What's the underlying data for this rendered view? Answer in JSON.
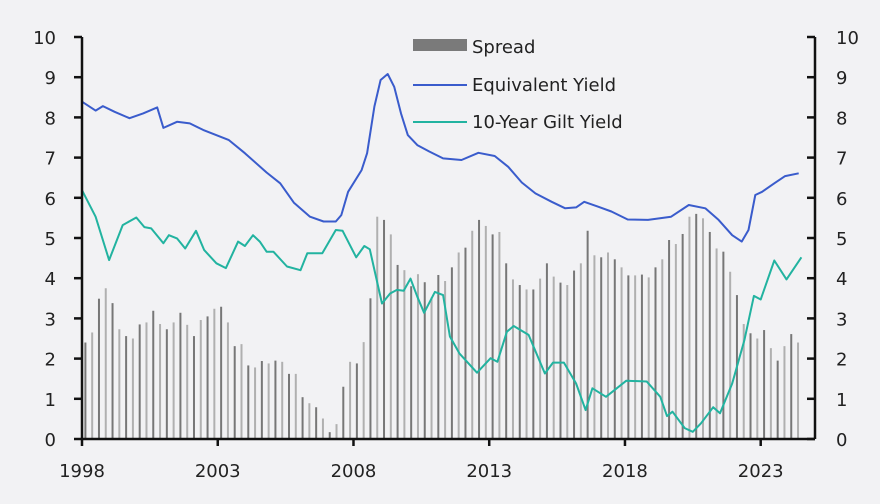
{
  "chart_data": {
    "type": "bar+line",
    "title": "",
    "xlabel": "",
    "ylabel": "",
    "xlim": [
      1998,
      2025
    ],
    "ylim": [
      0,
      10
    ],
    "ylim_right": [
      0,
      10
    ],
    "x_ticks": [
      "1998",
      "2003",
      "2008",
      "2013",
      "2018",
      "2023"
    ],
    "y_ticks": [
      "0",
      "1",
      "2",
      "3",
      "4",
      "5",
      "6",
      "7",
      "8",
      "9",
      "10"
    ],
    "grid": false,
    "legend_position": "top-center",
    "colors": {
      "spread": "#8a8a8a",
      "equivalent_yield": "#3a5ccc",
      "gilt_yield": "#22b3a0",
      "axis": "#111111",
      "background": "#f2f2f4"
    },
    "bars": {
      "name": "Spread",
      "start": 1998.0,
      "frequency": "quarterly",
      "values": [
        2.4,
        2.65,
        3.49,
        3.75,
        3.38,
        2.73,
        2.56,
        2.5,
        2.85,
        2.9,
        3.19,
        2.86,
        2.73,
        2.9,
        3.14,
        2.84,
        2.56,
        2.96,
        3.05,
        3.24,
        3.29,
        2.9,
        2.31,
        2.36,
        1.83,
        1.78,
        1.94,
        1.88,
        1.95,
        1.92,
        1.62,
        1.62,
        1.04,
        0.89,
        0.79,
        0.51,
        0.17,
        0.37,
        1.3,
        1.92,
        1.88,
        2.41,
        3.5,
        5.53,
        5.45,
        5.09,
        4.33,
        4.2,
        3.8,
        4.1,
        3.9,
        3.52,
        4.08,
        3.93,
        4.27,
        4.64,
        4.76,
        5.18,
        5.45,
        5.3,
        5.09,
        5.15,
        4.37,
        3.97,
        3.83,
        3.72,
        3.72,
        3.99,
        4.37,
        4.04,
        3.89,
        3.83,
        4.19,
        4.37,
        5.18,
        4.57,
        4.52,
        4.64,
        4.47,
        4.27,
        4.07,
        4.07,
        4.09,
        4.02,
        4.27,
        4.47,
        4.95,
        4.85,
        5.1,
        5.53,
        5.6,
        5.49,
        5.15,
        4.74,
        4.66,
        4.16,
        3.58,
        2.86,
        2.63,
        2.5,
        2.71,
        2.26,
        1.95,
        2.31,
        2.61,
        2.4
      ]
    },
    "series": [
      {
        "name": "Equivalent Yield",
        "points": [
          [
            1998.0,
            8.39
          ],
          [
            1998.5,
            8.17
          ],
          [
            1998.77,
            8.28
          ],
          [
            1999.2,
            8.14
          ],
          [
            1999.75,
            7.98
          ],
          [
            2000.25,
            8.1
          ],
          [
            2000.77,
            8.25
          ],
          [
            2001.0,
            7.74
          ],
          [
            2001.5,
            7.89
          ],
          [
            2001.97,
            7.85
          ],
          [
            2002.46,
            7.69
          ],
          [
            2003.4,
            7.44
          ],
          [
            2004.0,
            7.11
          ],
          [
            2004.8,
            6.63
          ],
          [
            2005.3,
            6.36
          ],
          [
            2005.8,
            5.88
          ],
          [
            2006.4,
            5.53
          ],
          [
            2006.9,
            5.41
          ],
          [
            2007.35,
            5.41
          ],
          [
            2007.55,
            5.57
          ],
          [
            2007.8,
            6.15
          ],
          [
            2008.3,
            6.69
          ],
          [
            2008.5,
            7.11
          ],
          [
            2008.77,
            8.27
          ],
          [
            2009.0,
            8.93
          ],
          [
            2009.26,
            9.08
          ],
          [
            2009.5,
            8.76
          ],
          [
            2009.75,
            8.1
          ],
          [
            2010.0,
            7.56
          ],
          [
            2010.35,
            7.31
          ],
          [
            2010.8,
            7.15
          ],
          [
            2011.3,
            6.98
          ],
          [
            2011.98,
            6.94
          ],
          [
            2012.6,
            7.12
          ],
          [
            2013.2,
            7.04
          ],
          [
            2013.7,
            6.77
          ],
          [
            2014.2,
            6.38
          ],
          [
            2014.7,
            6.11
          ],
          [
            2015.3,
            5.9
          ],
          [
            2015.8,
            5.74
          ],
          [
            2016.2,
            5.76
          ],
          [
            2016.5,
            5.9
          ],
          [
            2017.0,
            5.78
          ],
          [
            2017.5,
            5.66
          ],
          [
            2018.1,
            5.46
          ],
          [
            2018.85,
            5.45
          ],
          [
            2019.7,
            5.53
          ],
          [
            2020.35,
            5.82
          ],
          [
            2020.96,
            5.74
          ],
          [
            2021.45,
            5.45
          ],
          [
            2021.95,
            5.07
          ],
          [
            2022.3,
            4.91
          ],
          [
            2022.55,
            5.2
          ],
          [
            2022.8,
            6.07
          ],
          [
            2023.05,
            6.15
          ],
          [
            2023.5,
            6.36
          ],
          [
            2023.9,
            6.54
          ],
          [
            2024.4,
            6.61
          ]
        ]
      },
      {
        "name": "10-Year Gilt Yield",
        "points": [
          [
            1998.0,
            6.19
          ],
          [
            1998.5,
            5.53
          ],
          [
            1999.0,
            4.45
          ],
          [
            1999.5,
            5.32
          ],
          [
            2000.0,
            5.51
          ],
          [
            2000.3,
            5.27
          ],
          [
            2000.55,
            5.24
          ],
          [
            2001.0,
            4.87
          ],
          [
            2001.2,
            5.07
          ],
          [
            2001.5,
            4.99
          ],
          [
            2001.8,
            4.74
          ],
          [
            2002.2,
            5.18
          ],
          [
            2002.5,
            4.7
          ],
          [
            2002.95,
            4.37
          ],
          [
            2003.3,
            4.25
          ],
          [
            2003.75,
            4.91
          ],
          [
            2004.0,
            4.8
          ],
          [
            2004.3,
            5.07
          ],
          [
            2004.55,
            4.91
          ],
          [
            2004.8,
            4.66
          ],
          [
            2005.05,
            4.66
          ],
          [
            2005.55,
            4.29
          ],
          [
            2006.05,
            4.2
          ],
          [
            2006.3,
            4.62
          ],
          [
            2006.85,
            4.62
          ],
          [
            2007.35,
            5.2
          ],
          [
            2007.6,
            5.18
          ],
          [
            2008.1,
            4.52
          ],
          [
            2008.4,
            4.8
          ],
          [
            2008.6,
            4.72
          ],
          [
            2008.8,
            4.12
          ],
          [
            2009.05,
            3.37
          ],
          [
            2009.35,
            3.62
          ],
          [
            2009.6,
            3.71
          ],
          [
            2009.85,
            3.69
          ],
          [
            2010.1,
            3.99
          ],
          [
            2010.35,
            3.54
          ],
          [
            2010.6,
            3.14
          ],
          [
            2011.0,
            3.66
          ],
          [
            2011.3,
            3.58
          ],
          [
            2011.55,
            2.55
          ],
          [
            2011.9,
            2.13
          ],
          [
            2012.55,
            1.65
          ],
          [
            2013.05,
            2.01
          ],
          [
            2013.3,
            1.92
          ],
          [
            2013.65,
            2.67
          ],
          [
            2013.9,
            2.81
          ],
          [
            2014.45,
            2.59
          ],
          [
            2015.05,
            1.63
          ],
          [
            2015.35,
            1.9
          ],
          [
            2015.75,
            1.9
          ],
          [
            2016.2,
            1.38
          ],
          [
            2016.55,
            0.72
          ],
          [
            2016.8,
            1.26
          ],
          [
            2017.3,
            1.05
          ],
          [
            2018.05,
            1.45
          ],
          [
            2018.8,
            1.43
          ],
          [
            2019.3,
            1.05
          ],
          [
            2019.55,
            0.57
          ],
          [
            2019.75,
            0.68
          ],
          [
            2020.2,
            0.27
          ],
          [
            2020.5,
            0.18
          ],
          [
            2020.8,
            0.39
          ],
          [
            2021.25,
            0.79
          ],
          [
            2021.5,
            0.64
          ],
          [
            2021.95,
            1.38
          ],
          [
            2022.4,
            2.46
          ],
          [
            2022.75,
            3.56
          ],
          [
            2023.0,
            3.47
          ],
          [
            2023.5,
            4.44
          ],
          [
            2023.95,
            3.97
          ],
          [
            2024.5,
            4.52
          ]
        ]
      }
    ],
    "legend": [
      "Spread",
      "Equivalent Yield",
      "10-Year Gilt Yield"
    ]
  }
}
